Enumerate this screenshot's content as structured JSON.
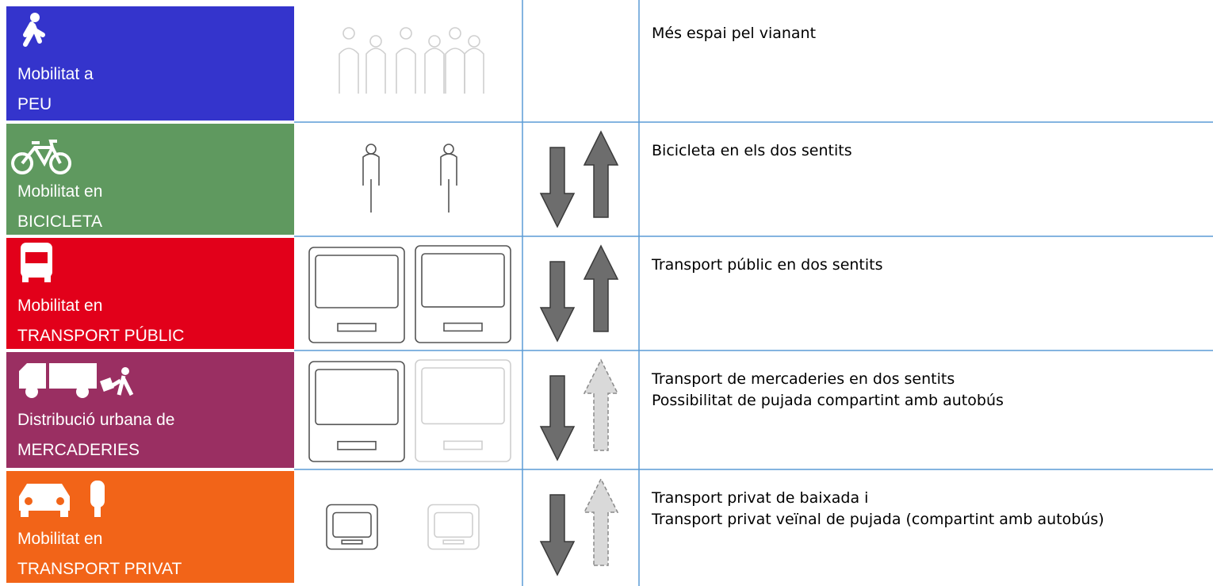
{
  "rows": [
    {
      "label": [
        "Mobilitat a",
        "PEU"
      ],
      "color": "#3434cc",
      "description": [
        "Més espai pel vianant"
      ]
    },
    {
      "label": [
        "Mobilitat en",
        "BICICLETA"
      ],
      "color": "#5f995f",
      "description": [
        "Bicicleta en els dos sentits"
      ]
    },
    {
      "label": [
        "Mobilitat en",
        "TRANSPORT PÚBLIC"
      ],
      "color": "#e2001a",
      "description": [
        "Transport públic en dos sentits"
      ]
    },
    {
      "label": [
        "Distribució urbana de",
        "MERCADERIES"
      ],
      "color": "#9a2f62",
      "description": [
        "Transport de mercaderies en dos sentits",
        "Possibilitat de pujada compartint amb autobús"
      ]
    },
    {
      "label": [
        "Mobilitat en",
        "TRANSPORT PRIVAT"
      ],
      "color": "#f26418",
      "description": [
        "Transport privat de baixada i",
        "Transport privat veïnal de pujada  (compartint amb autobús)"
      ]
    }
  ]
}
